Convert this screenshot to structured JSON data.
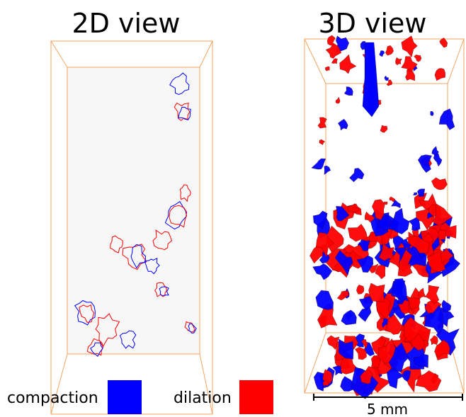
{
  "panels": [
    {
      "title": "2D view"
    },
    {
      "title": "3D view"
    }
  ],
  "legend": [
    {
      "label": "compaction",
      "color": "#0000ff"
    },
    {
      "label": "dilation",
      "color": "#ff0000"
    }
  ],
  "scale_bar": {
    "label": "5 mm"
  }
}
